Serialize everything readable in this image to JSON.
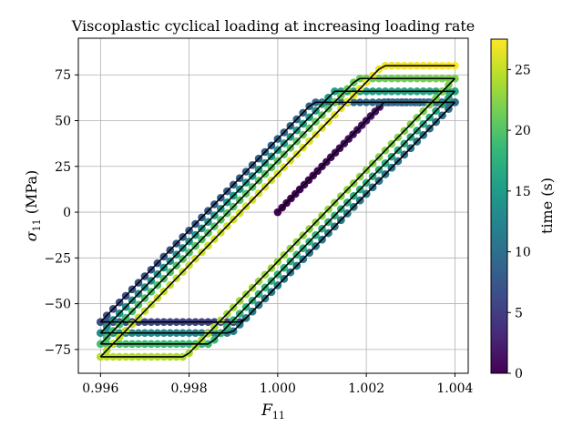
{
  "chart_data": {
    "type": "scatter",
    "title": "Viscoplastic cyclical loading at increasing loading rate",
    "xlabel": "F",
    "xlabel_sub": "11",
    "ylabel": "σ",
    "ylabel_sub": "11",
    "ylabel_unit": "(MPa)",
    "xlim": [
      0.9955,
      1.0043
    ],
    "ylim": [
      -88,
      95
    ],
    "xticks": [
      0.996,
      0.998,
      1.0,
      1.002,
      1.004
    ],
    "xtick_labels": [
      "0.996",
      "0.998",
      "1.000",
      "1.002",
      "1.004"
    ],
    "yticks": [
      -75,
      -50,
      -25,
      0,
      25,
      50,
      75
    ],
    "ytick_labels": [
      "−75",
      "−50",
      "−25",
      "0",
      "25",
      "50",
      "75"
    ],
    "grid": true,
    "colorbar": {
      "label": "time (s)",
      "range": [
        0,
        27.5
      ],
      "ticks": [
        0,
        5,
        10,
        15,
        20,
        25
      ],
      "tick_labels": [
        "0",
        "5",
        "10",
        "15",
        "20",
        "25"
      ],
      "colormap": "viridis"
    },
    "elastic_modulus_MPa_per_unit": 25000,
    "initial_loading": {
      "x_start": 1.0,
      "x_end": 1.004,
      "yield_stress": 60,
      "t_start": 0.0,
      "t_end": 2.5
    },
    "cycles": [
      {
        "upper_stress": 60,
        "lower_stress": -60,
        "t_start": 2.5,
        "t_end": 10.5
      },
      {
        "upper_stress": 66,
        "lower_stress": -66,
        "t_start": 10.5,
        "t_end": 16.5
      },
      {
        "upper_stress": 73,
        "lower_stress": -72,
        "t_start": 16.5,
        "t_end": 22.0
      },
      {
        "upper_stress": 80,
        "lower_stress": -79,
        "t_start": 22.0,
        "t_end": 27.5
      }
    ],
    "model_curve_color": "#000000",
    "colors": {
      "grid": "#b0b0b0",
      "axes": "#000000"
    }
  }
}
